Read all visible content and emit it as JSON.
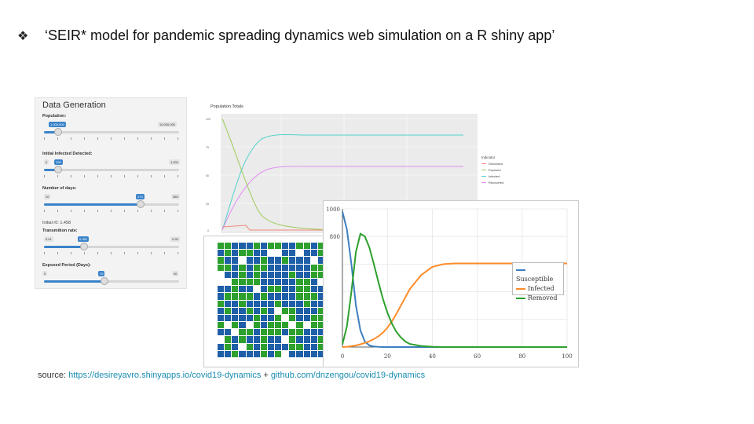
{
  "slide": {
    "bullet": "❖",
    "heading": "‘SEIR* model for pandemic spreading dynamics web simulation on a R shiny app’"
  },
  "sidebar": {
    "title": "Data Generation",
    "population": {
      "label": "Population:",
      "value_tag": "1,000,000",
      "max_tag": "10,000,000",
      "fraction": 0.1
    },
    "infected": {
      "label": "Initial Infected Detected:",
      "min_tag": "0",
      "value_tag": "100",
      "max_tag": "1,000",
      "fraction": 0.1
    },
    "days": {
      "label": "Number of days:",
      "min_tag": "10",
      "value_tag": "270",
      "max_tag": "365",
      "fraction": 0.71
    },
    "r0_text": "Initial r0: 1.458",
    "transmission": {
      "label": "Transmition rate:",
      "min_tag": "0.01",
      "value_tag": "0.081",
      "max_tag": "0.25",
      "fraction": 0.29
    },
    "exposed": {
      "label": "Exposed Period (Days):",
      "min_tag": "0",
      "value_tag": "10",
      "max_tag": "40",
      "fraction": 0.38
    }
  },
  "population_chart": {
    "title": "Population Totals",
    "legend_title": "Indicator",
    "legend": [
      {
        "name": "Deceased",
        "color": "#f08a7a"
      },
      {
        "name": "Exposed",
        "color": "#9ccc5a"
      },
      {
        "name": "Infected",
        "color": "#4fd1cc"
      },
      {
        "name": "Recovered",
        "color": "#e08cf0"
      }
    ],
    "y_ticks": [
      "100",
      "75",
      "50",
      "25",
      "0"
    ]
  },
  "grid_colors": {
    "blue": "#1f5fa8",
    "green": "#2ea02e",
    "white": "#ffffff"
  },
  "chart_data": {
    "type": "line",
    "x": [
      0,
      2,
      4,
      6,
      8,
      10,
      12,
      14,
      16,
      18,
      20,
      22,
      24,
      26,
      28,
      30,
      35,
      40,
      45,
      50,
      60,
      70,
      80,
      90,
      100
    ],
    "series": [
      {
        "name": "Susceptible",
        "color": "#3c7fbf",
        "values": [
          980,
          850,
          600,
          300,
          120,
          40,
          12,
          4,
          1,
          0,
          0,
          0,
          0,
          0,
          0,
          0,
          0,
          0,
          0,
          0,
          0,
          0,
          0,
          0,
          0
        ]
      },
      {
        "name": "Infected",
        "color": "#ff8c2a",
        "values": [
          0,
          2,
          6,
          12,
          20,
          30,
          42,
          58,
          78,
          104,
          140,
          185,
          240,
          300,
          360,
          420,
          520,
          580,
          600,
          605,
          605,
          605,
          605,
          605,
          605
        ]
      },
      {
        "name": "Removed",
        "color": "#2ca02c",
        "values": [
          20,
          150,
          400,
          690,
          820,
          800,
          720,
          600,
          470,
          350,
          250,
          170,
          110,
          70,
          40,
          22,
          8,
          2,
          0,
          0,
          0,
          0,
          0,
          0,
          0
        ]
      }
    ],
    "x_ticks": [
      "0",
      "20",
      "40",
      "60",
      "80",
      "100"
    ],
    "y_ticks": [
      "1000",
      "800"
    ],
    "xlim": [
      0,
      100
    ],
    "ylim": [
      0,
      1000
    ]
  },
  "source": {
    "prefix": "source: ",
    "link1": "https://desireyavro.shinyapps.io/covid19-dynamics",
    "sep": " + ",
    "link2": "github.com/dnzengou/covid19-dynamics"
  }
}
